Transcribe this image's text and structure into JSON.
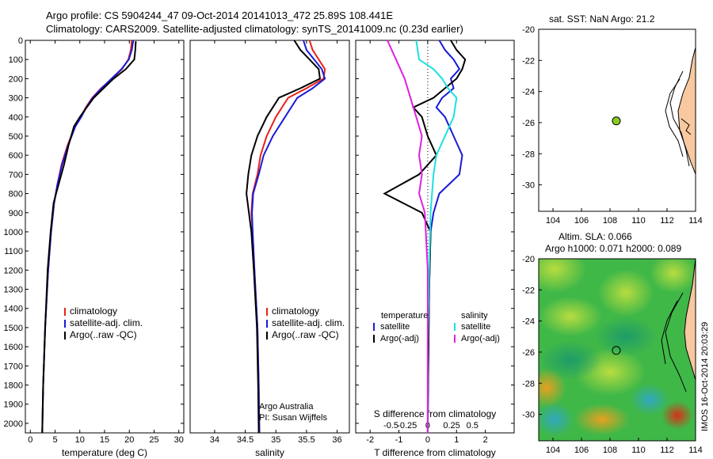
{
  "title": {
    "line1": "Argo profile: CS 5904244_47 09-Oct-2014 20141013_472 25.89S 108.441E",
    "line2": "Climatology: CARS2009. Satellite-adjusted climatology: synTS_20141009.nc (0.23d earlier)"
  },
  "colors": {
    "climatology": "#e8201a",
    "satellite": "#1a1ad8",
    "argo": "#000000",
    "sat_salinity": "#1ee0e0",
    "argo_adj": "#e020e0",
    "land": "#f8c8a0",
    "marker": "#88cc22"
  },
  "chart_data": [
    {
      "type": "line",
      "id": "temperature",
      "xlabel": "temperature (deg C)",
      "ylabel": "",
      "xlim": [
        -1,
        31
      ],
      "ylim": [
        2050,
        0
      ],
      "xticks": [
        0,
        5,
        10,
        15,
        20,
        25,
        30
      ],
      "yticks": [
        0,
        100,
        200,
        300,
        400,
        500,
        600,
        700,
        800,
        900,
        1000,
        1100,
        1200,
        1300,
        1400,
        1500,
        1600,
        1700,
        1800,
        1900,
        2000
      ],
      "legend": [
        "climatology",
        "satellite-adj. clim.",
        "Argo(..raw -QC)"
      ],
      "series": [
        {
          "name": "climatology",
          "x": [
            20.5,
            20.3,
            19.8,
            18.5,
            16.5,
            14.3,
            12.5,
            11.2,
            10.2,
            9.0,
            7.5,
            6.3,
            5.5,
            4.8,
            4.2,
            3.6,
            3.0,
            2.6,
            2.4
          ],
          "y": [
            0,
            50,
            100,
            150,
            200,
            250,
            300,
            350,
            400,
            450,
            550,
            650,
            750,
            850,
            1000,
            1200,
            1500,
            1800,
            2050
          ]
        },
        {
          "name": "satellite-adj. clim.",
          "x": [
            20.8,
            20.5,
            19.9,
            18.4,
            16.4,
            14.4,
            12.6,
            11.3,
            10.3,
            9.1,
            7.6,
            6.4,
            5.5,
            4.8,
            4.2,
            3.6,
            3.0,
            2.6,
            2.4
          ],
          "y": [
            0,
            50,
            100,
            150,
            200,
            250,
            300,
            350,
            400,
            450,
            550,
            650,
            750,
            850,
            1000,
            1200,
            1500,
            1800,
            2050
          ]
        },
        {
          "name": "Argo(..raw -QC)",
          "x": [
            21.3,
            21.2,
            21.0,
            19.3,
            16.8,
            14.8,
            12.8,
            11.4,
            10.0,
            8.8,
            7.7,
            6.8,
            5.2,
            4.7,
            4.1,
            3.5,
            3.0,
            2.6,
            2.4
          ],
          "y": [
            5,
            50,
            100,
            150,
            200,
            250,
            300,
            350,
            400,
            450,
            550,
            650,
            800,
            850,
            1000,
            1200,
            1500,
            1800,
            2050
          ]
        }
      ]
    },
    {
      "type": "line",
      "id": "salinity",
      "xlabel": "salinity",
      "ylabel": "",
      "xlim": [
        33.6,
        36.2
      ],
      "ylim": [
        2050,
        0
      ],
      "xticks": [
        34,
        34.5,
        35,
        35.5,
        36
      ],
      "legend": [
        "climatology",
        "satellite-adj. clim.",
        "Argo(..raw -QC)"
      ],
      "annotations": [
        "Argo Australia",
        "PI: Susan Wijffels"
      ],
      "series": [
        {
          "name": "climatology",
          "x": [
            35.55,
            35.6,
            35.8,
            35.78,
            35.5,
            35.2,
            35.0,
            34.85,
            34.75,
            34.7,
            34.62,
            34.6,
            34.62,
            34.65,
            34.7,
            34.72,
            34.73
          ],
          "y": [
            0,
            50,
            150,
            200,
            250,
            300,
            400,
            500,
            600,
            700,
            800,
            900,
            1000,
            1200,
            1500,
            1800,
            2050
          ]
        },
        {
          "name": "satellite-adj. clim.",
          "x": [
            35.45,
            35.5,
            35.75,
            35.8,
            35.6,
            35.35,
            35.15,
            34.95,
            34.8,
            34.72,
            34.63,
            34.61,
            34.62,
            34.65,
            34.7,
            34.72,
            34.73
          ],
          "y": [
            0,
            50,
            150,
            200,
            250,
            300,
            400,
            500,
            600,
            700,
            800,
            900,
            1000,
            1200,
            1500,
            1800,
            2050
          ]
        },
        {
          "name": "Argo(..raw -QC)",
          "x": [
            35.3,
            35.4,
            35.7,
            35.72,
            35.4,
            35.05,
            34.85,
            34.7,
            34.6,
            34.55,
            34.52,
            34.56,
            34.6,
            34.64,
            34.69,
            34.71,
            34.72
          ],
          "y": [
            0,
            50,
            150,
            200,
            250,
            300,
            400,
            500,
            600,
            700,
            800,
            900,
            1000,
            1200,
            1500,
            1800,
            2050
          ]
        }
      ]
    },
    {
      "type": "line",
      "id": "difference",
      "xlabel": "T difference from climatology",
      "xlabel2": "S difference from climatology",
      "xlim": [
        -2.5,
        3.0
      ],
      "ylim": [
        2050,
        0
      ],
      "xticks": [
        -2,
        -1,
        0,
        1,
        2
      ],
      "xticks_S": [
        "-0.5",
        "-0.25",
        "0",
        "0.25",
        "0.5"
      ],
      "legend_titles": [
        "temperature",
        "salinity"
      ],
      "legend": [
        "satellite",
        "Argo(-adj)",
        "satellite",
        "Argo(-adj)"
      ],
      "series": [
        {
          "name": "temperature satellite",
          "x": [
            0.4,
            0.6,
            0.9,
            1.1,
            0.8,
            0.9,
            0.5,
            0.3,
            0.6,
            0.9,
            1.2,
            1.1,
            0.4,
            0.2,
            0.1,
            0.05,
            0.02,
            0.0
          ],
          "y": [
            0,
            50,
            100,
            150,
            200,
            250,
            300,
            350,
            400,
            500,
            600,
            700,
            800,
            900,
            1000,
            1300,
            1700,
            2050
          ]
        },
        {
          "name": "temperature Argo(-adj)",
          "x": [
            0.8,
            1.0,
            1.3,
            1.2,
            1.0,
            0.6,
            0.2,
            -0.5,
            -0.2,
            0.0,
            0.3,
            -0.3,
            -1.5,
            -0.2,
            0.1,
            0.05,
            0.02,
            0.0
          ],
          "y": [
            0,
            50,
            100,
            150,
            200,
            250,
            300,
            350,
            400,
            500,
            600,
            700,
            800,
            900,
            1000,
            1300,
            1700,
            2050
          ]
        },
        {
          "name": "salinity satellite",
          "x": [
            -0.4,
            -0.3,
            0.2,
            0.5,
            0.7,
            1.0,
            0.9,
            0.6,
            0.3,
            0.2,
            0.1,
            0.05,
            0.0,
            0.0
          ],
          "y": [
            0,
            100,
            150,
            200,
            250,
            300,
            400,
            500,
            600,
            700,
            900,
            1200,
            1600,
            2050
          ]
        },
        {
          "name": "salinity Argo(-adj)",
          "x": [
            -1.4,
            -1.1,
            -0.8,
            -0.6,
            -0.4,
            -0.2,
            -0.3,
            -0.2,
            -0.3,
            -0.1,
            0.0,
            0.0
          ],
          "y": [
            0,
            100,
            200,
            300,
            400,
            500,
            600,
            700,
            800,
            900,
            1200,
            2050
          ]
        }
      ]
    },
    {
      "type": "map",
      "id": "sst_map",
      "title": "sat. SST: NaN Argo: 21.2",
      "xlim": [
        103,
        114
      ],
      "ylim": [
        -31.7,
        -20
      ],
      "xticks": [
        104,
        106,
        108,
        110,
        112,
        114
      ],
      "yticks": [
        -20,
        -22,
        -24,
        -26,
        -28,
        -30
      ],
      "point": {
        "lon": 108.441,
        "lat": -25.89
      }
    },
    {
      "type": "map",
      "id": "sla_map",
      "title1": "Altim. SLA: 0.066",
      "title2": "Argo h1000: 0.071 h2000: 0.089",
      "xlim": [
        103,
        114
      ],
      "ylim": [
        -31.7,
        -20
      ],
      "xticks": [
        104,
        106,
        108,
        110,
        112,
        114
      ],
      "yticks": [
        -20,
        -22,
        -24,
        -26,
        -28,
        -30
      ],
      "point": {
        "lon": 108.441,
        "lat": -25.89
      },
      "side_label": "IMOS 16-Oct-2014 20:03:29"
    }
  ]
}
